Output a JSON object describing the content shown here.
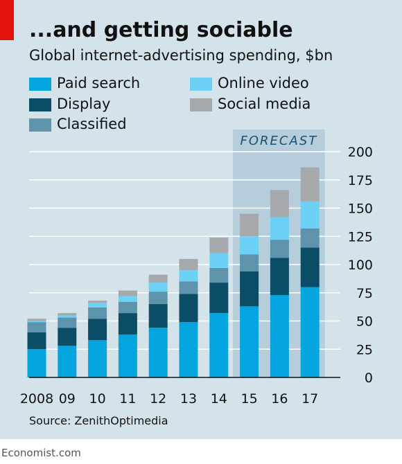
{
  "header": {
    "title": "...and getting sociable",
    "subtitle": "Global internet-advertising spending, $bn"
  },
  "source": "Source: ZenithOptimedia",
  "footer": "Economist.com",
  "colors": {
    "panel": "#d4e3ea",
    "accent_red": "#e3120b",
    "gridline": "#ffffff",
    "forecast_band": "#b6cedb",
    "paid_search": "#04a4de",
    "display": "#0b4c66",
    "classified": "#5d93ab",
    "online_video": "#6dd0f5",
    "social_media": "#a5a9ab"
  },
  "chart_data": {
    "type": "bar",
    "stacked": true,
    "title": "...and getting sociable",
    "subtitle": "Global internet-advertising spending, $bn",
    "categories": [
      "2008",
      "09",
      "10",
      "11",
      "12",
      "13",
      "14",
      "15",
      "16",
      "17"
    ],
    "series": [
      {
        "name": "Paid search",
        "color": "#04a4de",
        "values": [
          25,
          28,
          33,
          38,
          44,
          49,
          57,
          63,
          73,
          80
        ]
      },
      {
        "name": "Display",
        "color": "#0b4c66",
        "values": [
          15,
          16,
          19,
          19,
          21,
          25,
          27,
          31,
          33,
          35
        ]
      },
      {
        "name": "Classified",
        "color": "#5d93ab",
        "values": [
          9,
          9,
          10,
          10,
          11,
          11,
          13,
          15,
          16,
          17
        ]
      },
      {
        "name": "Online video",
        "color": "#6dd0f5",
        "values": [
          1,
          2,
          4,
          5,
          8,
          10,
          13,
          16,
          20,
          24
        ]
      },
      {
        "name": "Social media",
        "color": "#a5a9ab",
        "values": [
          2,
          2,
          2,
          5,
          7,
          10,
          14,
          20,
          24,
          30
        ]
      }
    ],
    "yticks": [
      "0",
      "25",
      "50",
      "75",
      "100",
      "125",
      "150",
      "175",
      "200"
    ],
    "ylim": [
      0,
      200
    ],
    "y_axis_side": "right",
    "grid": true,
    "forecast": {
      "label": "FORECAST",
      "from": "15",
      "to": "17"
    },
    "legend_placement": "top-left"
  }
}
